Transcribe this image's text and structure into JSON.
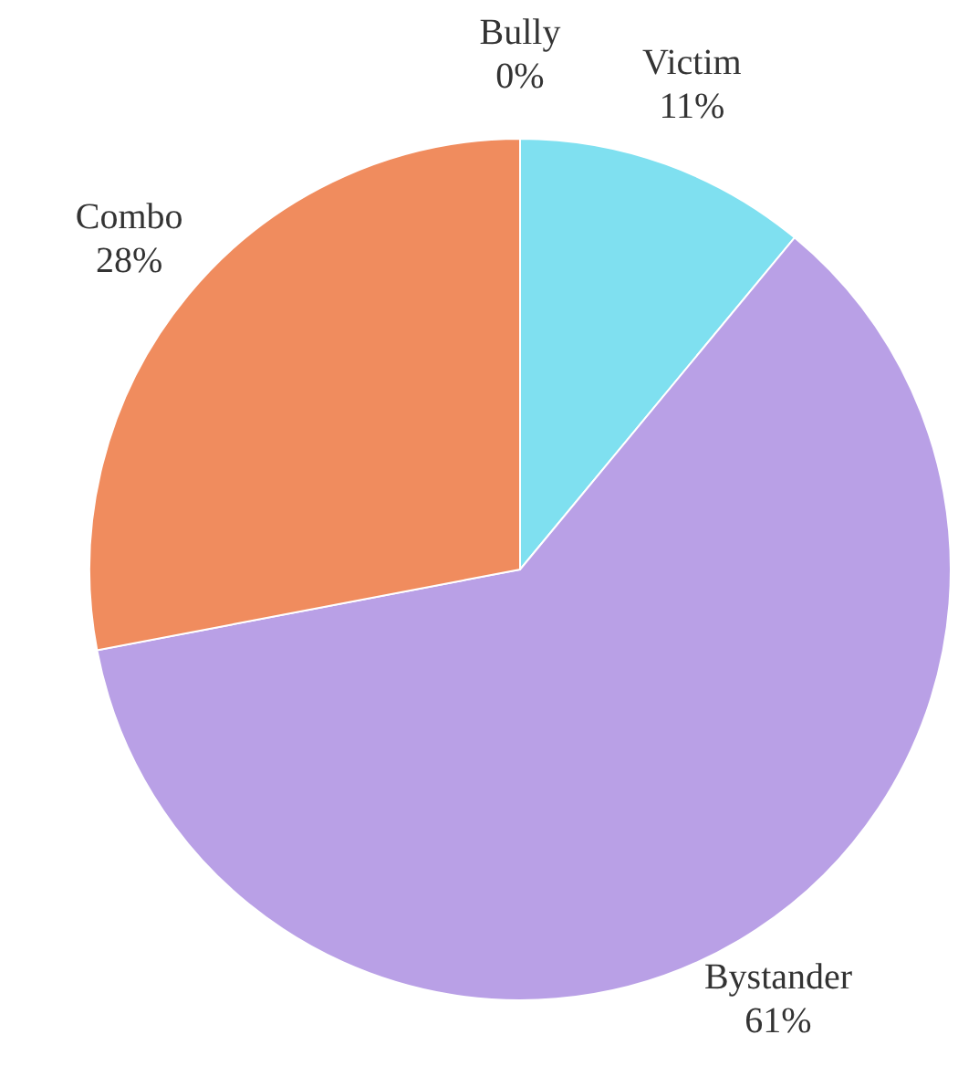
{
  "chart_data": {
    "type": "pie",
    "categories": [
      "Bully",
      "Victim",
      "Bystander",
      "Combo"
    ],
    "values": [
      0,
      11,
      61,
      28
    ],
    "value_labels": [
      "0%",
      "11%",
      "61%",
      "28%"
    ],
    "colors": [
      "#8fa8d8",
      "#7fe0f0",
      "#b9a0e6",
      "#f08c5e"
    ]
  }
}
